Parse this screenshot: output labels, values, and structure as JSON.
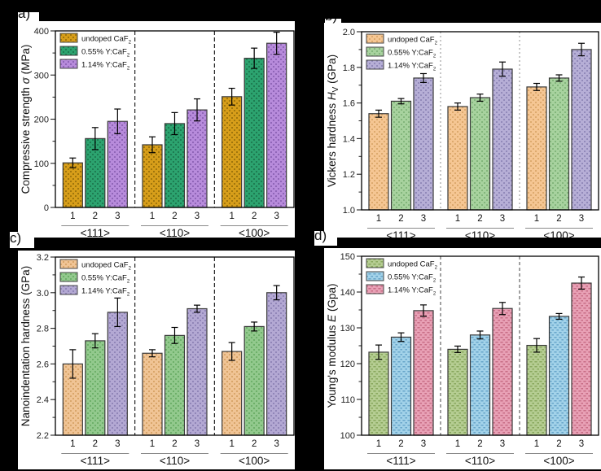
{
  "figure": {
    "background": "#000000",
    "panels": [
      {
        "label": "a)"
      },
      {
        "label": "b)"
      },
      {
        "label": "c)"
      },
      {
        "label": "d)"
      }
    ]
  },
  "legend": {
    "entries": [
      {
        "segments": [
          {
            "t": "undoped CaF"
          },
          {
            "t": "2",
            "sub": true
          }
        ]
      },
      {
        "segments": [
          {
            "t": "0.55% Y:CaF"
          },
          {
            "t": "2",
            "sub": true
          }
        ]
      },
      {
        "segments": [
          {
            "t": "1.14% Y:CaF"
          },
          {
            "t": "2",
            "sub": true
          }
        ]
      }
    ]
  },
  "chart_data": [
    {
      "id": "a",
      "type": "bar",
      "ylabel_segments": [
        {
          "t": "Compressive strength "
        },
        {
          "t": "σ",
          "i": true
        },
        {
          "t": " (MPa)"
        }
      ],
      "ylim": [
        0,
        400
      ],
      "yticks": [
        "0",
        "100",
        "200",
        "300",
        "400"
      ],
      "groups": [
        "<111>",
        "<110>",
        "<100>"
      ],
      "bar_numbers": [
        "1",
        "2",
        "3"
      ],
      "separator": {
        "color": "#111111",
        "dash": "5,3"
      },
      "pattern": "square",
      "series": [
        {
          "name": "undoped CaF2",
          "color": "#D79E1A",
          "pattern_color": "#8a6405",
          "values": [
            101,
            142,
            251
          ],
          "errors": [
            11,
            18,
            19
          ]
        },
        {
          "name": "0.55% Y:CaF2",
          "color": "#2CA36F",
          "pattern_color": "#166b45",
          "values": [
            156,
            190,
            338
          ],
          "errors": [
            25,
            25,
            23
          ]
        },
        {
          "name": "1.14% Y:CaF2",
          "color": "#B78BDB",
          "pattern_color": "#7e55a8",
          "values": [
            195,
            221,
            372
          ],
          "errors": [
            28,
            25,
            25
          ]
        }
      ]
    },
    {
      "id": "b",
      "type": "bar",
      "ylabel_segments": [
        {
          "t": "Vickers hardness "
        },
        {
          "t": "H",
          "i": true
        },
        {
          "t": "V",
          "sub": true
        },
        {
          "t": " (GPa)"
        }
      ],
      "ylim": [
        1.0,
        2.0
      ],
      "yticks": [
        "1.0",
        "1.2",
        "1.4",
        "1.6",
        "1.8",
        "2.0"
      ],
      "groups": [
        "<111>",
        "<110>",
        "<100>"
      ],
      "bar_numbers": [
        "1",
        "2",
        "3"
      ],
      "separator": {
        "color": "#999999",
        "dash": "2,3"
      },
      "pattern": "square",
      "series": [
        {
          "name": "undoped CaF2",
          "color": "#F5C693",
          "pattern_color": "#d39c5d",
          "values": [
            1.54,
            1.58,
            1.69
          ],
          "errors": [
            0.02,
            0.02,
            0.02
          ]
        },
        {
          "name": "0.55% Y:CaF2",
          "color": "#A7D29E",
          "pattern_color": "#73a96c",
          "values": [
            1.61,
            1.63,
            1.74
          ],
          "errors": [
            0.015,
            0.02,
            0.018
          ]
        },
        {
          "name": "1.14% Y:CaF2",
          "color": "#B6AED6",
          "pattern_color": "#837aae",
          "values": [
            1.74,
            1.79,
            1.9
          ],
          "errors": [
            0.025,
            0.04,
            0.035
          ]
        }
      ]
    },
    {
      "id": "c",
      "type": "bar",
      "ylabel_segments": [
        {
          "t": "Nanoindentation hardness (GPa)"
        }
      ],
      "ylim": [
        2.2,
        3.2
      ],
      "yticks": [
        "2.2",
        "2.4",
        "2.6",
        "2.8",
        "3.0",
        "3.2"
      ],
      "groups": [
        "<111>",
        "<110>",
        "<100>"
      ],
      "bar_numbers": [
        "1",
        "2",
        "3"
      ],
      "separator": {
        "color": "#111111",
        "dash": "5,3"
      },
      "pattern": "square",
      "series": [
        {
          "name": "undoped CaF2",
          "color": "#F0C495",
          "pattern_color": "#cf9a58",
          "values": [
            2.6,
            2.66,
            2.67
          ],
          "errors": [
            0.08,
            0.02,
            0.05
          ]
        },
        {
          "name": "0.55% Y:CaF2",
          "color": "#92C98D",
          "pattern_color": "#5ea35a",
          "values": [
            2.73,
            2.76,
            2.81
          ],
          "errors": [
            0.04,
            0.045,
            0.025
          ]
        },
        {
          "name": "1.14% Y:CaF2",
          "color": "#B3A8D3",
          "pattern_color": "#8177ad",
          "values": [
            2.89,
            2.91,
            3.0
          ],
          "errors": [
            0.08,
            0.02,
            0.04
          ]
        }
      ]
    },
    {
      "id": "d",
      "type": "bar",
      "ylabel_segments": [
        {
          "t": "Young's modulus "
        },
        {
          "t": "E",
          "i": true
        },
        {
          "t": " (Gpa)"
        }
      ],
      "ylim": [
        100,
        150
      ],
      "yticks": [
        "100",
        "110",
        "120",
        "130",
        "140",
        "150"
      ],
      "groups": [
        "<111>",
        "<110>",
        "<100>"
      ],
      "bar_numbers": [
        "1",
        "2",
        "3"
      ],
      "separator": {
        "color": "#555555",
        "dash": "4,3"
      },
      "pattern": "dash",
      "series": [
        {
          "name": "undoped CaF2",
          "color": "#B5CD92",
          "pattern_color": "#81a155",
          "values": [
            123.2,
            124.0,
            125.1
          ],
          "errors": [
            2.0,
            0.9,
            1.9
          ]
        },
        {
          "name": "0.55% Y:CaF2",
          "color": "#A2D2E9",
          "pattern_color": "#5f9fc4",
          "values": [
            127.4,
            128.0,
            133.2
          ],
          "errors": [
            1.2,
            1.1,
            0.8
          ]
        },
        {
          "name": "1.14% Y:CaF2",
          "color": "#E8A0B5",
          "pattern_color": "#c2657e",
          "values": [
            134.8,
            135.4,
            142.5
          ],
          "errors": [
            1.6,
            1.7,
            1.7
          ]
        }
      ]
    }
  ]
}
